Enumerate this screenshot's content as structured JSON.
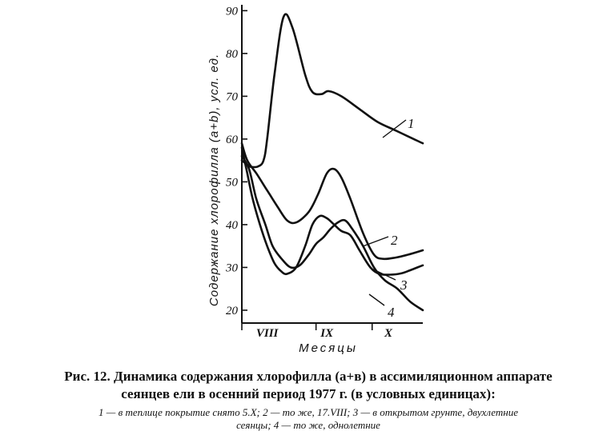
{
  "chart_data": {
    "type": "line",
    "title": "",
    "ylabel": "Содержание хлорофилла (a+b), усл. ед.",
    "xlabel": "Месяцы",
    "ylim": [
      17,
      91
    ],
    "xlim": [
      0,
      100
    ],
    "y_ticks": [
      20,
      30,
      40,
      50,
      60,
      70,
      80,
      90
    ],
    "month_ticks": [
      {
        "label": "VIII",
        "x": 0
      },
      {
        "label": "IX",
        "x": 41
      },
      {
        "label": "X",
        "x": 72
      }
    ],
    "month_label_positions": [
      {
        "label": "VIII",
        "x": 14
      },
      {
        "label": "IX",
        "x": 47
      },
      {
        "label": "X",
        "x": 81
      }
    ],
    "series": [
      {
        "name": "1",
        "x": [
          0,
          3,
          5,
          9,
          12,
          14,
          18,
          23,
          28,
          35,
          39,
          44,
          48,
          55,
          65,
          75,
          85,
          95,
          100
        ],
        "y": [
          55,
          54,
          53.5,
          53.6,
          55,
          60,
          75,
          88.5,
          86,
          75,
          71,
          70.5,
          71.2,
          70,
          67,
          64,
          62,
          60,
          59
        ]
      },
      {
        "name": "2",
        "x": [
          0,
          3,
          8,
          14,
          20,
          25,
          30,
          37,
          42,
          47,
          51,
          55,
          60,
          67,
          73,
          78,
          85,
          92,
          100
        ],
        "y": [
          59,
          55,
          52,
          48,
          44,
          41,
          40.5,
          43,
          47,
          52,
          53,
          51,
          46,
          38,
          33,
          32,
          32.3,
          33,
          34
        ]
      },
      {
        "name": "3",
        "x": [
          0,
          3,
          6,
          10,
          14,
          18,
          22,
          25,
          30,
          35,
          39,
          43,
          47,
          51,
          55,
          60,
          65,
          71,
          76,
          82,
          88,
          94,
          100
        ],
        "y": [
          58,
          52,
          46,
          40,
          35,
          31,
          29,
          28.5,
          30,
          35,
          40,
          42,
          41.5,
          40,
          38.5,
          37.5,
          34,
          30,
          28.5,
          28.3,
          28.6,
          29.5,
          30.5
        ]
      },
      {
        "name": "4",
        "x": [
          0,
          4,
          8,
          13,
          17,
          22,
          27,
          32,
          37,
          41,
          45,
          49,
          53,
          57,
          61,
          67,
          73,
          79,
          86,
          93,
          100
        ],
        "y": [
          56,
          53,
          46,
          40,
          35,
          32,
          30,
          30.5,
          33,
          35.5,
          37,
          39,
          40.5,
          41,
          39,
          35,
          30,
          27,
          25,
          22,
          20
        ]
      }
    ]
  },
  "caption": {
    "line1": "Рис. 12. Динамика содержания хлорофилла (а+в) в ассимиляционном аппарате",
    "line2": "сеянцев ели в осенний период 1977 г. (в условных единицах):",
    "notes1": "1 — в теплице покрытие снято 5.X; 2 — то же, 17.VIII; 3 — в открытом грунте, двухлетние",
    "notes2": "сеянцы; 4 — то же, однолетние"
  }
}
